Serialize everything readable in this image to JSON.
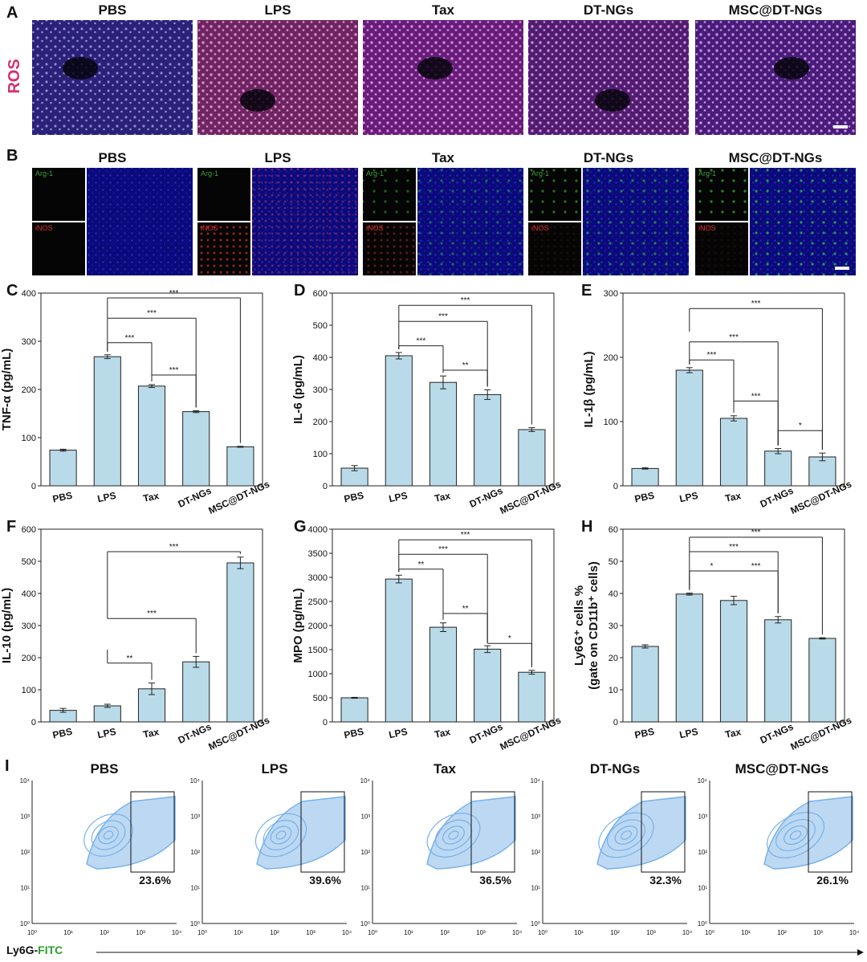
{
  "colors": {
    "bar_fill": "#b9dbe9",
    "bar_stroke": "#222222",
    "flow_fill": "#bcd8f3",
    "flow_line": "#78b2e8",
    "ros_label": "#d6306f",
    "arg1_label": "#3aa03a",
    "inos_label": "#e03030"
  },
  "panel_a": {
    "letter": "A",
    "side_label": "ROS",
    "groups": [
      "PBS",
      "LPS",
      "Tax",
      "DT-NGs",
      "MSC@DT-NGs"
    ],
    "tints": [
      "#4638c8",
      "#c23ea0",
      "#b52fcf",
      "#8a2fbe",
      "#7a2fcf"
    ]
  },
  "panel_b": {
    "letter": "B",
    "groups": [
      "PBS",
      "LPS",
      "Tax",
      "DT-NGs",
      "MSC@DT-NGs"
    ],
    "arg1_label": "Arg-1",
    "inos_label": "iNOS"
  },
  "chart_data": [
    {
      "panel": "C",
      "type": "bar",
      "ylabel": "TNF-α (pg/mL)",
      "ylim": [
        0,
        400
      ],
      "yticks": [
        0,
        100,
        200,
        300,
        400
      ],
      "categories": [
        "PBS",
        "LPS",
        "Tax",
        "DT-NGs",
        "MSC@DT-NGs"
      ],
      "values": [
        74,
        268,
        207,
        154,
        81
      ],
      "errors": [
        2,
        4,
        3,
        2,
        1
      ],
      "significance": [
        {
          "from": 1,
          "to": 4,
          "label": "***",
          "level": 390,
          "drop_from": 348
        },
        {
          "from": 1,
          "to": 3,
          "label": "***",
          "level": 348
        },
        {
          "from": 1,
          "to": 2,
          "label": "***",
          "level": 297
        },
        {
          "from": 2,
          "to": 3,
          "label": "***",
          "level": 230
        }
      ]
    },
    {
      "panel": "D",
      "type": "bar",
      "ylabel": "IL-6 (pg/mL)",
      "ylim": [
        0,
        600
      ],
      "yticks": [
        0,
        100,
        200,
        300,
        400,
        500,
        600
      ],
      "categories": [
        "PBS",
        "LPS",
        "Tax",
        "DT-NGs",
        "MSC@DT-NGs"
      ],
      "values": [
        55,
        405,
        322,
        284,
        175
      ],
      "errors": [
        8,
        10,
        20,
        15,
        6
      ],
      "significance": [
        {
          "from": 1,
          "to": 4,
          "label": "***",
          "level": 562,
          "drop_from": 512
        },
        {
          "from": 1,
          "to": 3,
          "label": "***",
          "level": 512
        },
        {
          "from": 1,
          "to": 2,
          "label": "***",
          "level": 436
        },
        {
          "from": 2,
          "to": 3,
          "label": "**",
          "level": 360
        }
      ]
    },
    {
      "panel": "E",
      "type": "bar",
      "ylabel": "IL-1β (pg/mL)",
      "ylim": [
        0,
        300
      ],
      "yticks": [
        0,
        100,
        200,
        300
      ],
      "categories": [
        "PBS",
        "LPS",
        "Tax",
        "DT-NGs",
        "MSC@DT-NGs"
      ],
      "values": [
        27,
        180,
        105,
        54,
        45
      ],
      "errors": [
        1,
        4,
        4,
        4,
        6
      ],
      "significance": [
        {
          "from": 1,
          "to": 4,
          "label": "***",
          "level": 276,
          "drop_from": 240
        },
        {
          "from": 1,
          "to": 3,
          "label": "***",
          "level": 224
        },
        {
          "from": 1,
          "to": 2,
          "label": "***",
          "level": 196
        },
        {
          "from": 2,
          "to": 3,
          "label": "***",
          "level": 132
        },
        {
          "from": 3,
          "to": 4,
          "label": "*",
          "level": 86
        }
      ]
    },
    {
      "panel": "F",
      "type": "bar",
      "ylabel": "IL-10 (pg/mL)",
      "ylim": [
        0,
        600
      ],
      "yticks": [
        0,
        100,
        200,
        300,
        400,
        500,
        600
      ],
      "categories": [
        "PBS",
        "LPS",
        "Tax",
        "DT-NGs",
        "MSC@DT-NGs"
      ],
      "values": [
        36,
        50,
        103,
        187,
        495
      ],
      "errors": [
        6,
        5,
        18,
        17,
        18
      ],
      "significance": [
        {
          "from": 1,
          "to": 2,
          "label": "**",
          "level": 183,
          "drop_from": 225
        },
        {
          "from": 1,
          "to": 3,
          "label": "***",
          "level": 322,
          "drop_from": 367
        },
        {
          "from": 1,
          "to": 4,
          "label": "***",
          "level": 530,
          "drop_from": 367
        }
      ]
    },
    {
      "panel": "G",
      "type": "bar",
      "ylabel": "MPO (pg/mL)",
      "ylim": [
        0,
        4000
      ],
      "yticks": [
        0,
        500,
        1000,
        1500,
        2000,
        2500,
        3000,
        3500,
        4000
      ],
      "categories": [
        "PBS",
        "LPS",
        "Tax",
        "DT-NGs",
        "MSC@DT-NGs"
      ],
      "values": [
        500,
        2965,
        1965,
        1510,
        1030
      ],
      "errors": [
        10,
        80,
        90,
        70,
        40
      ],
      "significance": [
        {
          "from": 1,
          "to": 4,
          "label": "***",
          "level": 3780,
          "drop_from": 3480
        },
        {
          "from": 1,
          "to": 3,
          "label": "***",
          "level": 3480
        },
        {
          "from": 1,
          "to": 2,
          "label": "**",
          "level": 3170
        },
        {
          "from": 2,
          "to": 3,
          "label": "**",
          "level": 2250
        },
        {
          "from": 3,
          "to": 4,
          "label": "*",
          "level": 1630
        }
      ]
    },
    {
      "panel": "H",
      "type": "bar",
      "ylabel": "Ly6G⁺ cells %",
      "ylabel2": "(gate on CD11b⁺ cells)",
      "ylim": [
        0,
        60
      ],
      "yticks": [
        0,
        10,
        20,
        30,
        40,
        50,
        60
      ],
      "categories": [
        "PBS",
        "LPS",
        "Tax",
        "DT-NGs",
        "MSC@DT-NGs"
      ],
      "values": [
        23.5,
        39.8,
        37.8,
        31.8,
        26.0
      ],
      "errors": [
        0.5,
        0.3,
        1.3,
        1.0,
        0.2
      ],
      "significance": [
        {
          "from": 1,
          "to": 4,
          "label": "***",
          "level": 57.5,
          "drop_from": 53
        },
        {
          "from": 1,
          "to": 3,
          "label": "***",
          "level": 53
        },
        {
          "from": 1,
          "to": 3,
          "label": "***",
          "level": 47,
          "split": 2,
          "left_label": "*"
        }
      ]
    }
  ],
  "panel_i": {
    "letter": "I",
    "groups": [
      "PBS",
      "LPS",
      "Tax",
      "DT-NGs",
      "MSC@DT-NGs"
    ],
    "percentages": [
      "23.6%",
      "39.6%",
      "36.5%",
      "32.3%",
      "26.1%"
    ],
    "axis_ticks": [
      "10⁰",
      "10¹",
      "10²",
      "10³",
      "10⁴"
    ],
    "x_axis_label_prefix": "Ly6G-",
    "x_axis_label_suffix": "FITC"
  }
}
